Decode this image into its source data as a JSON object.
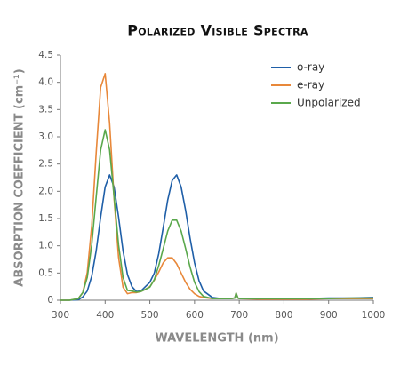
{
  "chart_data": {
    "type": "line",
    "title": "Polarized Visible Spectra",
    "x_label": "WAVELENGTH (nm)",
    "y_label": "ABSORPTION COEFFICIENT (cm⁻¹)",
    "x": [
      300,
      320,
      340,
      350,
      360,
      370,
      380,
      390,
      400,
      410,
      420,
      430,
      440,
      450,
      460,
      470,
      480,
      490,
      500,
      510,
      520,
      530,
      540,
      550,
      560,
      570,
      580,
      590,
      600,
      610,
      620,
      640,
      660,
      680,
      690,
      693,
      697,
      700,
      750,
      800,
      850,
      900,
      950,
      1000
    ],
    "series": [
      {
        "name": "o-ray",
        "color": "#1f5fa8",
        "values": [
          0,
          0,
          0.01,
          0.06,
          0.17,
          0.44,
          0.91,
          1.53,
          2.08,
          2.3,
          2.08,
          1.53,
          0.91,
          0.47,
          0.25,
          0.16,
          0.17,
          0.25,
          0.33,
          0.5,
          0.86,
          1.34,
          1.84,
          2.2,
          2.3,
          2.08,
          1.65,
          1.14,
          0.69,
          0.36,
          0.17,
          0.05,
          0.03,
          0.03,
          0.04,
          0.13,
          0.04,
          0.03,
          0.03,
          0.03,
          0.03,
          0.04,
          0.04,
          0.05
        ]
      },
      {
        "name": "e-ray",
        "color": "#e8883a",
        "values": [
          0,
          0,
          0.03,
          0.14,
          0.51,
          1.37,
          2.71,
          3.91,
          4.16,
          3.25,
          1.87,
          0.79,
          0.24,
          0.12,
          0.14,
          0.14,
          0.16,
          0.2,
          0.25,
          0.37,
          0.52,
          0.69,
          0.78,
          0.78,
          0.67,
          0.5,
          0.33,
          0.2,
          0.12,
          0.07,
          0.05,
          0.03,
          0.03,
          0.03,
          0.04,
          0.13,
          0.04,
          0.03,
          0.02,
          0.02,
          0.02,
          0.03,
          0.03,
          0.03
        ]
      },
      {
        "name": "Unpolarized",
        "color": "#5aa84c",
        "values": [
          0,
          0,
          0.03,
          0.14,
          0.42,
          1.02,
          1.9,
          2.76,
          3.13,
          2.76,
          1.9,
          1.02,
          0.42,
          0.18,
          0.17,
          0.15,
          0.16,
          0.2,
          0.24,
          0.38,
          0.64,
          0.95,
          1.27,
          1.47,
          1.47,
          1.27,
          0.95,
          0.61,
          0.33,
          0.16,
          0.07,
          0.03,
          0.03,
          0.03,
          0.04,
          0.13,
          0.04,
          0.03,
          0.03,
          0.03,
          0.03,
          0.03,
          0.04,
          0.04
        ]
      }
    ],
    "xlim": [
      300,
      1000
    ],
    "xticks": [
      300,
      400,
      500,
      600,
      700,
      800,
      900,
      1000
    ],
    "ylim": [
      0,
      4.5
    ],
    "yticks": [
      0,
      0.5,
      {
        "value": 1,
        "label": "1.0"
      },
      1.5,
      {
        "value": 2,
        "label": "2.0"
      },
      2.5,
      {
        "value": 3,
        "label": "3.0"
      },
      3.5,
      {
        "value": 4,
        "label": "4.0"
      },
      4.5
    ],
    "grid": false,
    "legend": "upper right"
  }
}
